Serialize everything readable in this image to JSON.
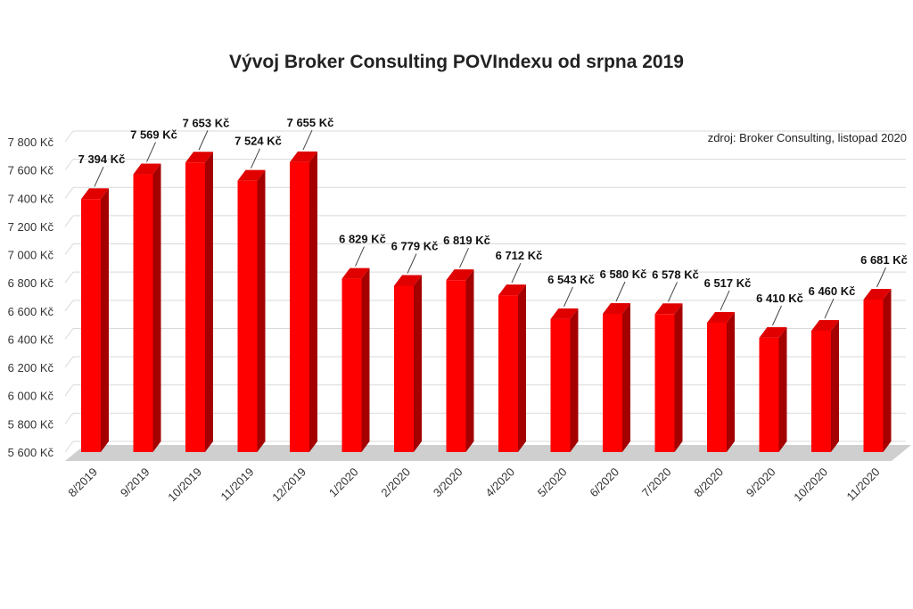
{
  "chart_data": {
    "type": "bar",
    "title": "Vývoj Broker Consulting POVIndexu od srpna 2019",
    "source_note": "zdroj: Broker Consulting, listopad 2020",
    "categories": [
      "8/2019",
      "9/2019",
      "10/2019",
      "11/2019",
      "12/2019",
      "1/2020",
      "2/2020",
      "3/2020",
      "4/2020",
      "5/2020",
      "6/2020",
      "7/2020",
      "8/2020",
      "9/2020",
      "10/2020",
      "11/2020"
    ],
    "values": [
      7394,
      7569,
      7653,
      7524,
      7655,
      6829,
      6779,
      6819,
      6712,
      6543,
      6580,
      6578,
      6517,
      6410,
      6460,
      6681
    ],
    "value_labels": [
      "7 394 Kč",
      "7 569 Kč",
      "7 653 Kč",
      "7 524 Kč",
      "7 655 Kč",
      "6 829 Kč",
      "6 779 Kč",
      "6 819 Kč",
      "6 712 Kč",
      "6 543 Kč",
      "6 580 Kč",
      "6 578 Kč",
      "6 517 Kč",
      "6 410 Kč",
      "6 460 Kč",
      "6 681 Kč"
    ],
    "yticks": [
      5600,
      5800,
      6000,
      6200,
      6400,
      6600,
      6800,
      7000,
      7200,
      7400,
      7600,
      7800
    ],
    "ytick_labels": [
      "5 600 Kč",
      "5 800 Kč",
      "6 000 Kč",
      "6 200 Kč",
      "6 400 Kč",
      "6 600 Kč",
      "6 800 Kč",
      "7 000 Kč",
      "7 200 Kč",
      "7 400 Kč",
      "7 600 Kč",
      "7 800 Kč"
    ],
    "ylim": [
      5600,
      7800
    ],
    "grid": true,
    "bar_color": "#ff0000",
    "bar_side_color": "#a40000",
    "bar_top_color": "#e00000",
    "floor_color": "#cfcfcf"
  }
}
